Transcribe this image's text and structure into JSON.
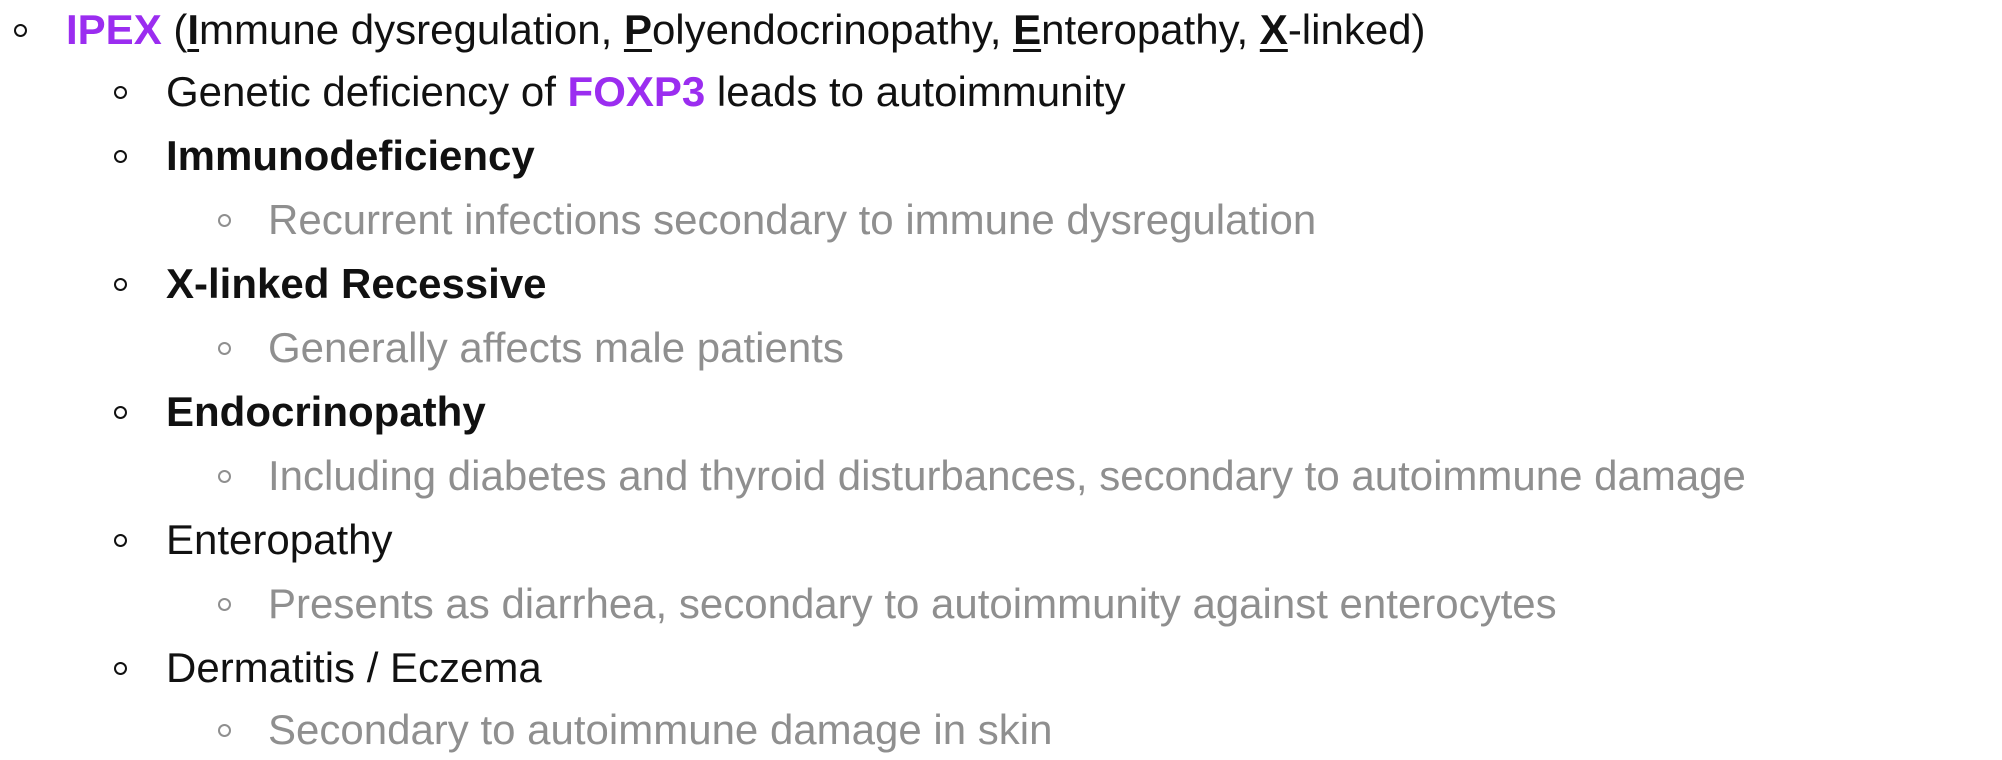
{
  "outline": {
    "root": {
      "term": "IPEX",
      "open_paren": " (",
      "letter_i": "I",
      "word_i": "mmune dysregulation, ",
      "letter_p": "P",
      "word_p": "olyendocrinopathy, ",
      "letter_e": "E",
      "word_e": "nteropathy, ",
      "letter_x": "X",
      "word_x": "-linked)"
    },
    "genetic": {
      "before": "Genetic deficiency of ",
      "gene": "FOXP3",
      "after": " leads to autoimmunity"
    },
    "items": [
      {
        "heading": "Immunodeficiency",
        "detail": "Recurrent infections secondary to immune dysregulation"
      },
      {
        "heading": "X-linked Recessive",
        "detail": "Generally affects male patients"
      },
      {
        "heading": "Endocrinopathy",
        "detail": "Including diabetes and thyroid disturbances, secondary to autoimmune damage"
      },
      {
        "heading": "Enteropathy",
        "detail": "Presents as diarrhea, secondary to autoimmunity against enterocytes"
      },
      {
        "heading": "Dermatitis / Eczema",
        "detail": "Secondary to autoimmune damage in skin"
      }
    ]
  },
  "colors": {
    "accent": "#9b2df0",
    "text": "#111111",
    "muted": "#8f8f8f"
  }
}
